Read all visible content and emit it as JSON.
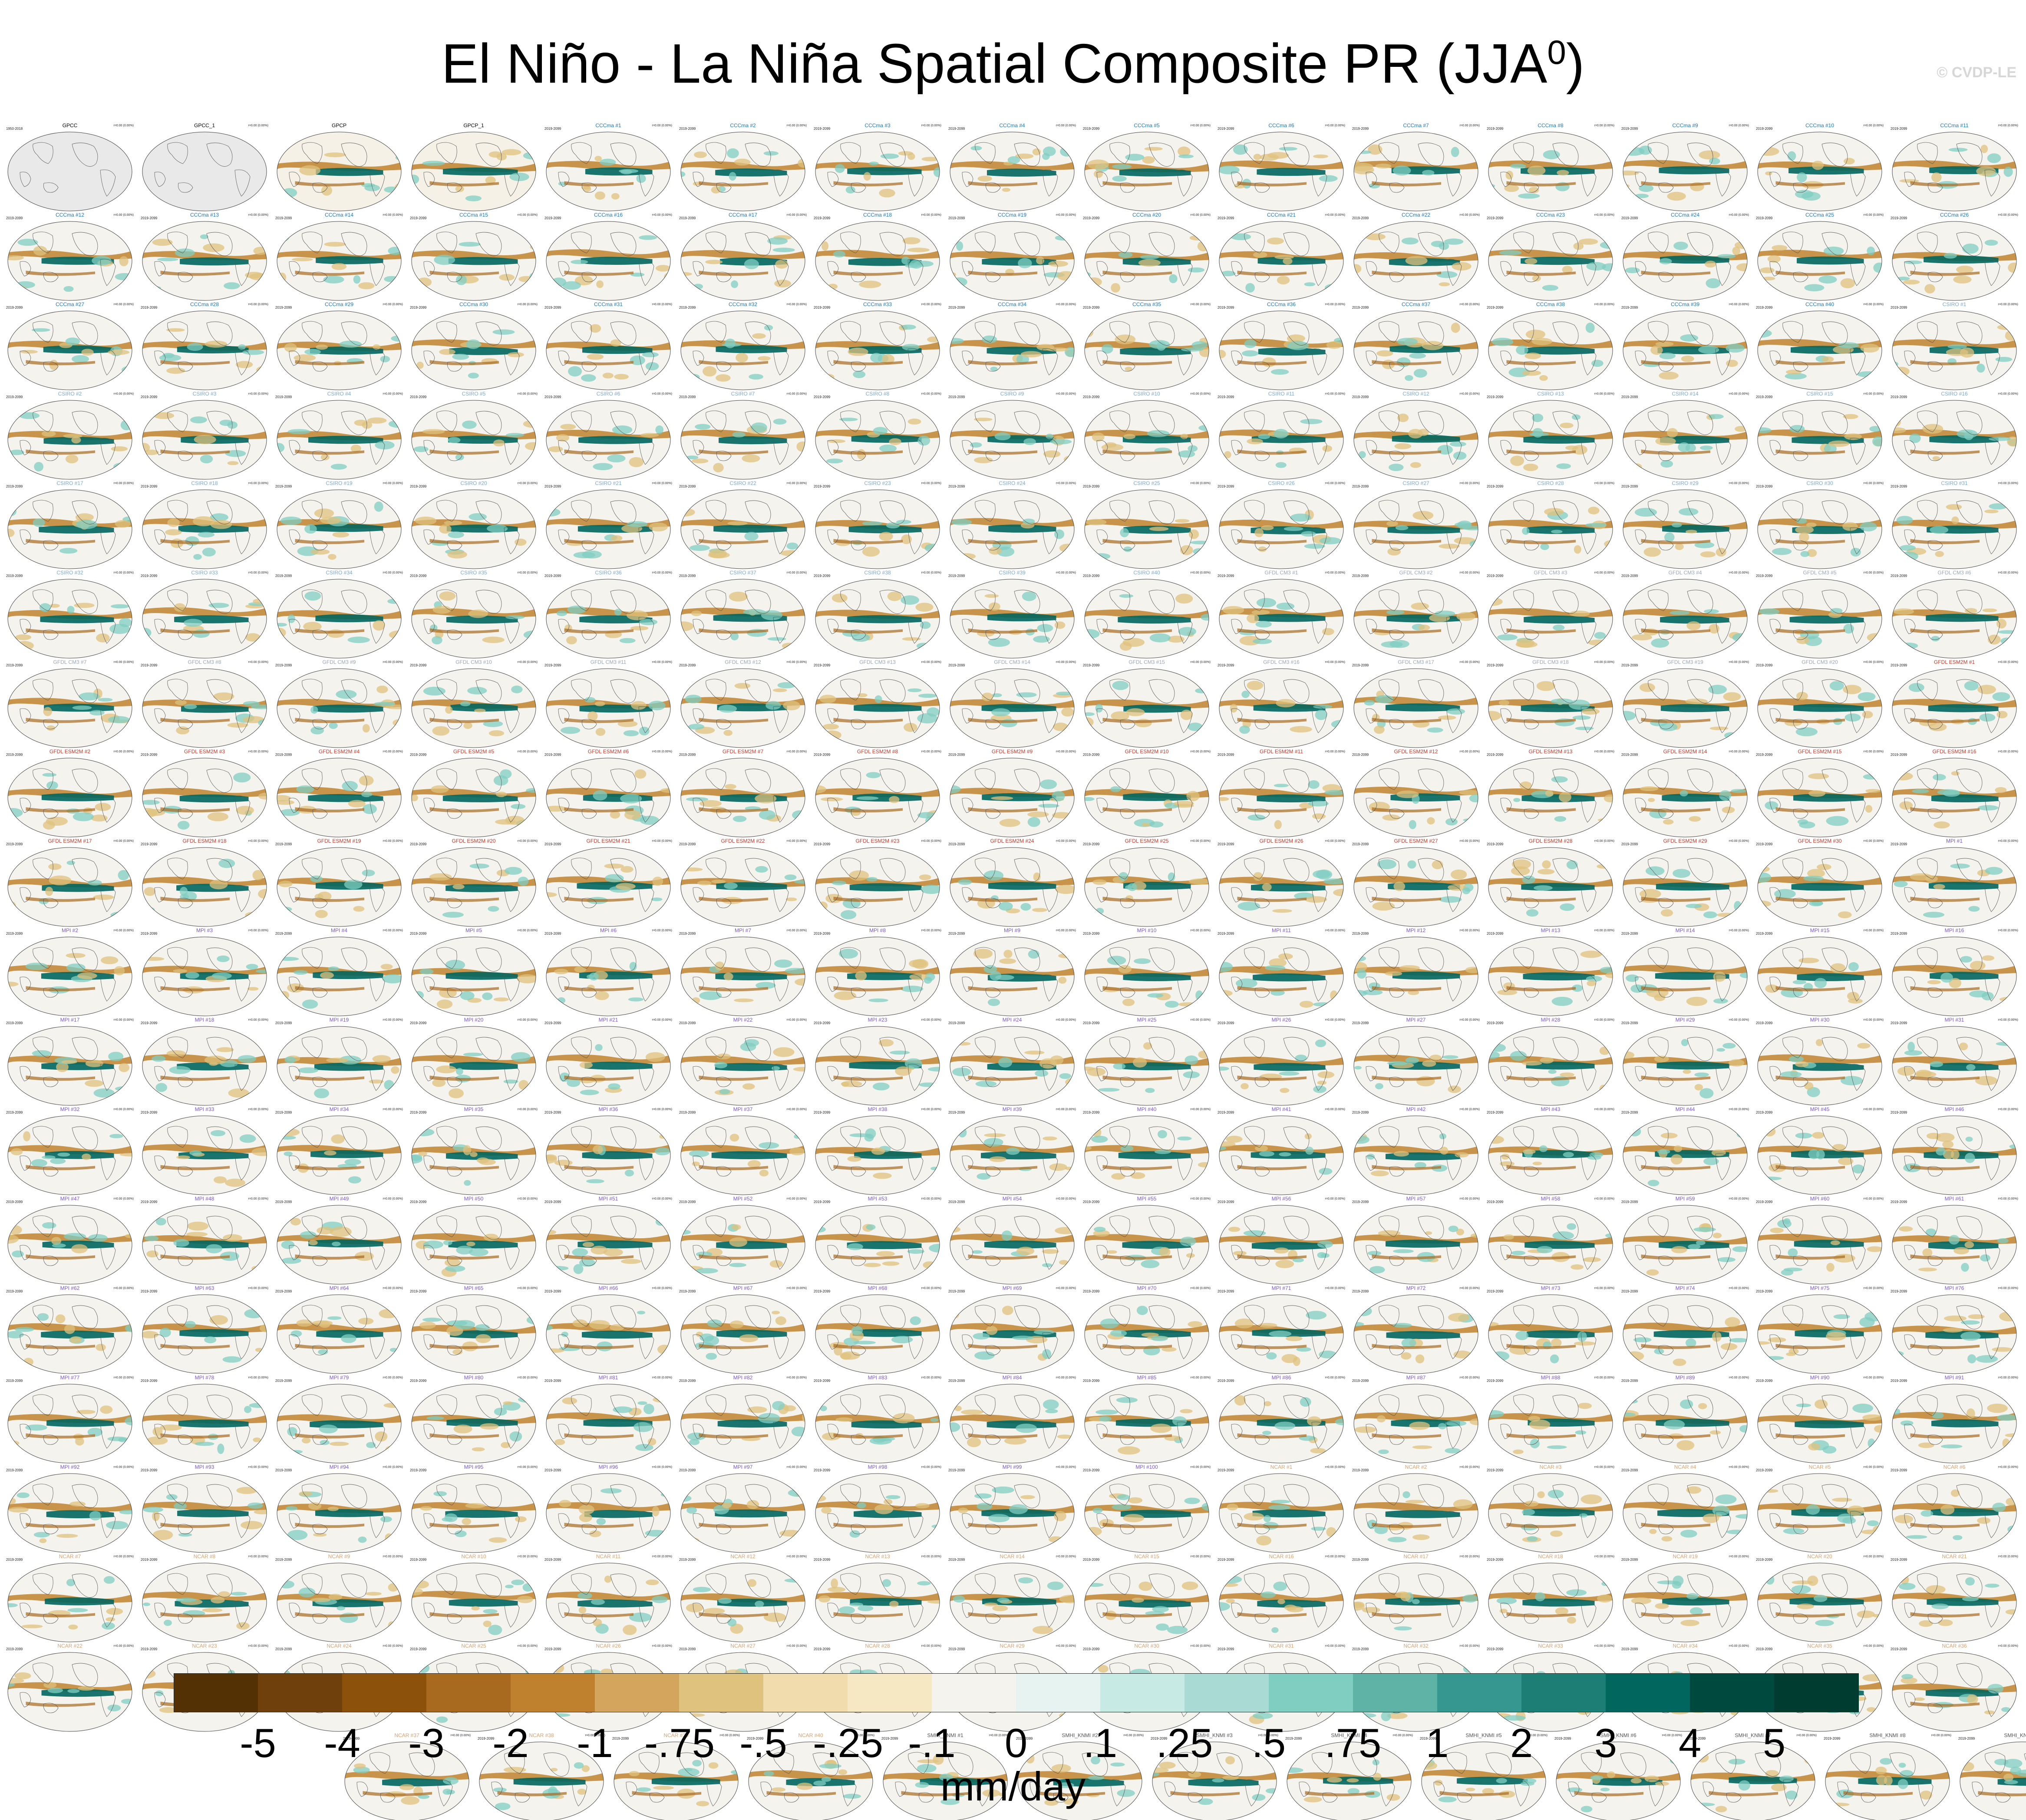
{
  "title": "El Niño - La Niña Spatial Composite PR (JJA",
  "title_superscript": "0",
  "title_close": ")",
  "watermark": "© CVDP-LE",
  "chart_data": {
    "type": "heatmap",
    "title": "El Niño - La Niña Spatial Composite PR (JJA0)",
    "variable": "PR",
    "season": "JJA0",
    "units_label": "mm/day",
    "colorbar": {
      "levels": [
        "-5",
        "-4",
        "-3",
        "-2",
        "-1",
        "-.75",
        "-.5",
        "-.25",
        "-.1",
        "0",
        ".1",
        ".25",
        ".5",
        ".75",
        "1",
        "2",
        "3",
        "4",
        "5"
      ],
      "colors": [
        "#543005",
        "#6f3f0c",
        "#8c510a",
        "#a86a1f",
        "#bf812d",
        "#d3a55d",
        "#dfc27d",
        "#f0dcac",
        "#f6e8c3",
        "#f5f3ee",
        "#e6f3f1",
        "#c7eae5",
        "#a9dbd4",
        "#80cdc1",
        "#5fb2a6",
        "#35978f",
        "#1d7e76",
        "#01665e",
        "#00493f",
        "#003c30"
      ]
    },
    "panel_stats_label": "r=0.00 (0.00%)",
    "observations": [
      {
        "name": "GPCC",
        "period": "1950-2018",
        "stat": "r=0.00 (0.00%)"
      },
      {
        "name": "GPCC_1",
        "period": "",
        "stat": "r=0.00 (0.00%)"
      },
      {
        "name": "GPCP",
        "period": "",
        "stat": ""
      },
      {
        "name": "GPCP_1",
        "period": "",
        "stat": ""
      }
    ],
    "ensembles": [
      {
        "model": "CCCma",
        "members": 40,
        "period": "2019-2099",
        "color": "#1f77b4"
      },
      {
        "model": "CSIRO",
        "members": 40,
        "period": "2019-2099",
        "color": "#7fa8c9"
      },
      {
        "model": "GFDL CM3",
        "members": 20,
        "period": "2019-2099",
        "color": "#9aa7b3"
      },
      {
        "model": "GFDL ESM2M",
        "members": 30,
        "period": "2019-2099",
        "color": "#c0392b"
      },
      {
        "model": "MPI",
        "members": 100,
        "period": "2019-2099",
        "color": "#7b57c9"
      },
      {
        "model": "NCAR",
        "members": 40,
        "period": "2019-2099",
        "color": "#d4a373"
      },
      {
        "model": "SMHI_KNMI",
        "members": 16,
        "period": "2019-2099",
        "color": "#555555"
      }
    ]
  }
}
